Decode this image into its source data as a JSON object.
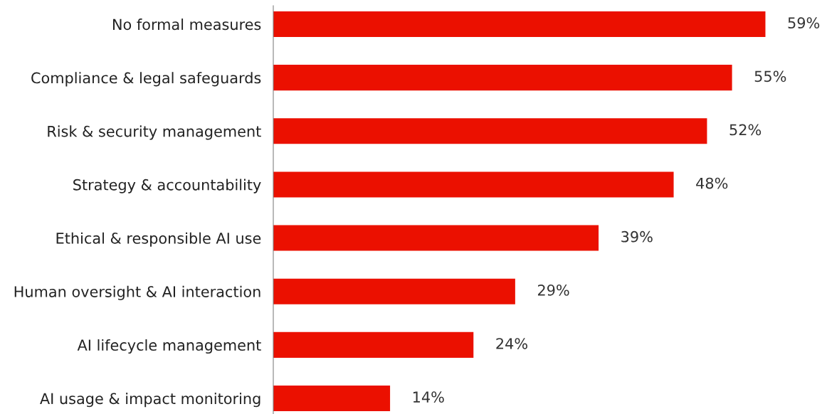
{
  "chart_data": {
    "type": "bar",
    "orientation": "horizontal",
    "categories": [
      "No formal measures",
      "Compliance & legal safeguards",
      "Risk & security management",
      "Strategy & accountability",
      "Ethical & responsible AI use",
      "Human oversight & AI interaction",
      "AI lifecycle management",
      "AI usage & impact monitoring"
    ],
    "values": [
      59,
      55,
      52,
      48,
      39,
      29,
      24,
      14
    ],
    "value_labels": [
      "59%",
      "55%",
      "52%",
      "48%",
      "39%",
      "29%",
      "24%",
      "14%"
    ],
    "color": "#eb1000",
    "grid": false,
    "legend": false
  }
}
